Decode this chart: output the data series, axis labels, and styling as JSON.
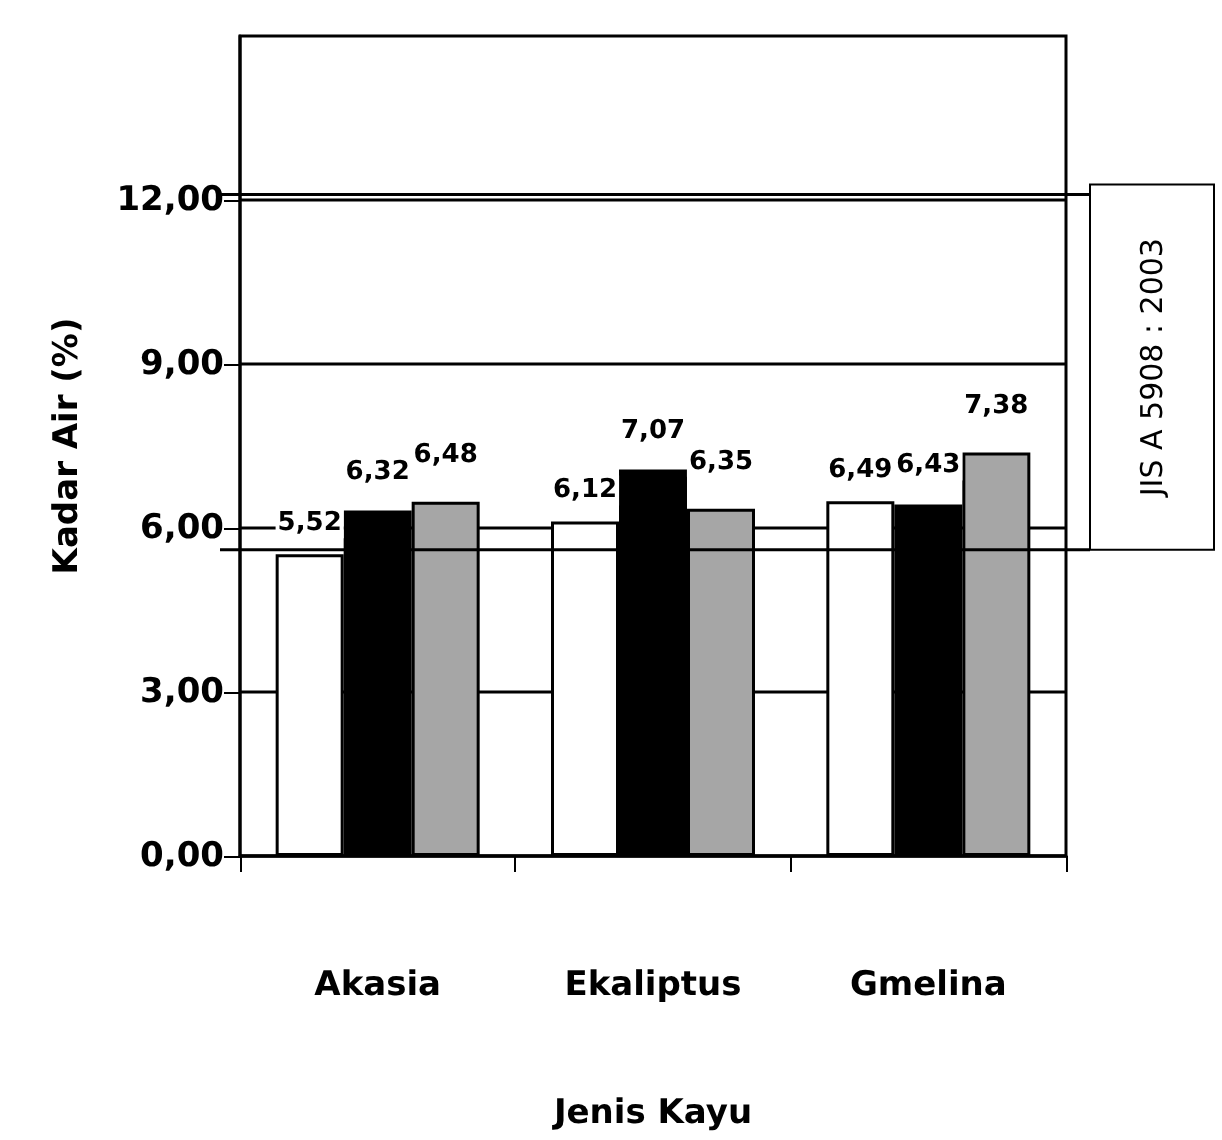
{
  "chart_data": {
    "type": "bar",
    "xlabel": "Jenis Kayu",
    "ylabel": "Kadar Air (%)",
    "categories": [
      "Akasia",
      "Ekaliptus",
      "Gmelina"
    ],
    "series": [
      {
        "color": "#ffffff",
        "values": [
          5.52,
          6.12,
          6.49
        ],
        "value_labels": [
          "5,52",
          "6,12",
          "6,49"
        ]
      },
      {
        "color": "#000000",
        "values": [
          6.32,
          7.07,
          6.43
        ],
        "value_labels": [
          "6,32",
          "7,07",
          "6,43"
        ]
      },
      {
        "color": "#a6a6a6",
        "values": [
          6.48,
          6.35,
          7.38
        ],
        "value_labels": [
          "6,48",
          "6,35",
          "7,38"
        ]
      }
    ],
    "ylim": [
      0,
      15
    ],
    "yticks": [
      {
        "value": 0,
        "label": "0,00"
      },
      {
        "value": 3,
        "label": "3,00"
      },
      {
        "value": 6,
        "label": "6,00"
      },
      {
        "value": 9,
        "label": "9,00"
      },
      {
        "value": 12,
        "label": "12,00"
      }
    ],
    "grid": "y",
    "ref_lines": [
      {
        "axis": "y",
        "value": 12.1
      },
      {
        "axis": "y",
        "value": 5.6
      }
    ],
    "annotations": [
      "JIS A 5908 : 2003"
    ]
  }
}
